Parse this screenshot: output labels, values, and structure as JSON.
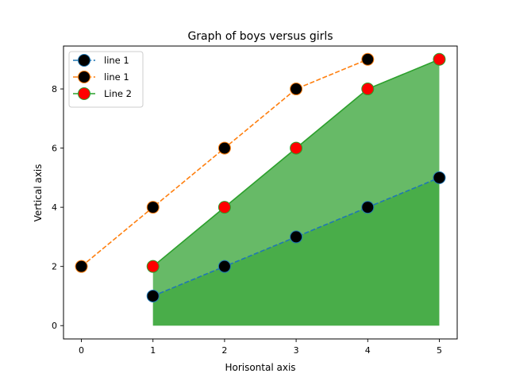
{
  "chart_data": {
    "type": "line",
    "title": "Graph of boys versus girls",
    "xlabel": "Horisontal axis",
    "ylabel": "Vertical axis",
    "xlim": [
      -0.25,
      5.25
    ],
    "ylim": [
      -0.45,
      9.45
    ],
    "xticks": [
      0,
      1,
      2,
      3,
      4,
      5
    ],
    "yticks": [
      0,
      2,
      4,
      6,
      8
    ],
    "grid": false,
    "legend_position": "upper-left",
    "series": [
      {
        "name": "line 1",
        "x": [
          1,
          2,
          3,
          4,
          5
        ],
        "y": [
          1,
          2,
          3,
          4,
          5
        ],
        "line_color": "#1f77b4",
        "line_style": "dashed",
        "marker_face": "#000000",
        "marker_edge": "#1f77b4",
        "fill_to_zero": true,
        "fill_color": "#2ca02c",
        "fill_opacity": 0.5
      },
      {
        "name": "line 1",
        "x": [
          0,
          1,
          2,
          3,
          4
        ],
        "y": [
          2,
          4,
          6,
          8,
          9
        ],
        "line_color": "#ff7f0e",
        "line_style": "dashed",
        "marker_face": "#000000",
        "marker_edge": "#ff7f0e",
        "fill_to_zero": false
      },
      {
        "name": "Line 2",
        "x": [
          1,
          2,
          3,
          4,
          5
        ],
        "y": [
          2,
          4,
          6,
          8,
          9
        ],
        "line_color": "#2ca02c",
        "line_style": "solid",
        "marker_face": "#ff0000",
        "marker_edge": "#2ca02c",
        "fill_to_zero": true,
        "fill_color": "#2ca02c",
        "fill_opacity": 0.72
      }
    ]
  }
}
